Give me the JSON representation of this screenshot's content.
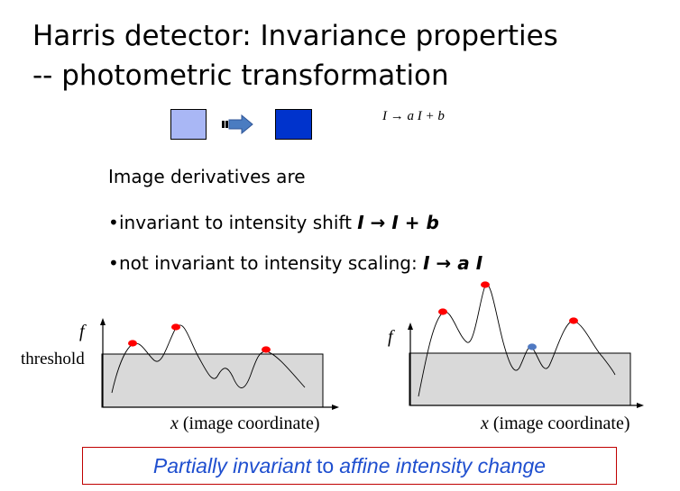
{
  "title": {
    "line1": "Harris detector: Invariance properties",
    "line2": "-- photometric transformation"
  },
  "colors": {
    "light_square": "#a9b7f5",
    "dark_square": "#0033cc",
    "arrow": "#4a7cc1",
    "region_fill": "#d9d9d9",
    "peak_red": "#ff0000",
    "peak_blue": "#4f79c2",
    "conclusion_text": "#1f4fcf",
    "conclusion_border": "#c00000"
  },
  "icons": {
    "transform_arrow": "arrow-right-icon"
  },
  "formula": {
    "lhs": "I",
    "arrow": "→",
    "rhs": "a I + b"
  },
  "body": {
    "intro": "Image derivatives are",
    "bullet1_text": "invariant to intensity shift ",
    "bullet1_math": "I → I + b",
    "bullet2_text": "not invariant to intensity scaling: ",
    "bullet2_math": "I → a I"
  },
  "plots": {
    "left": {
      "ylabel": "f",
      "threshold_label": "threshold",
      "xlabel_var": "x",
      "xlabel_text": " (image coordinate)"
    },
    "right": {
      "ylabel": "f",
      "xlabel_var": "x",
      "xlabel_text": " (image coordinate)"
    }
  },
  "conclusion": {
    "emph1": "Partially invariant",
    "plain": "to",
    "emph2": "affine intensity change"
  }
}
